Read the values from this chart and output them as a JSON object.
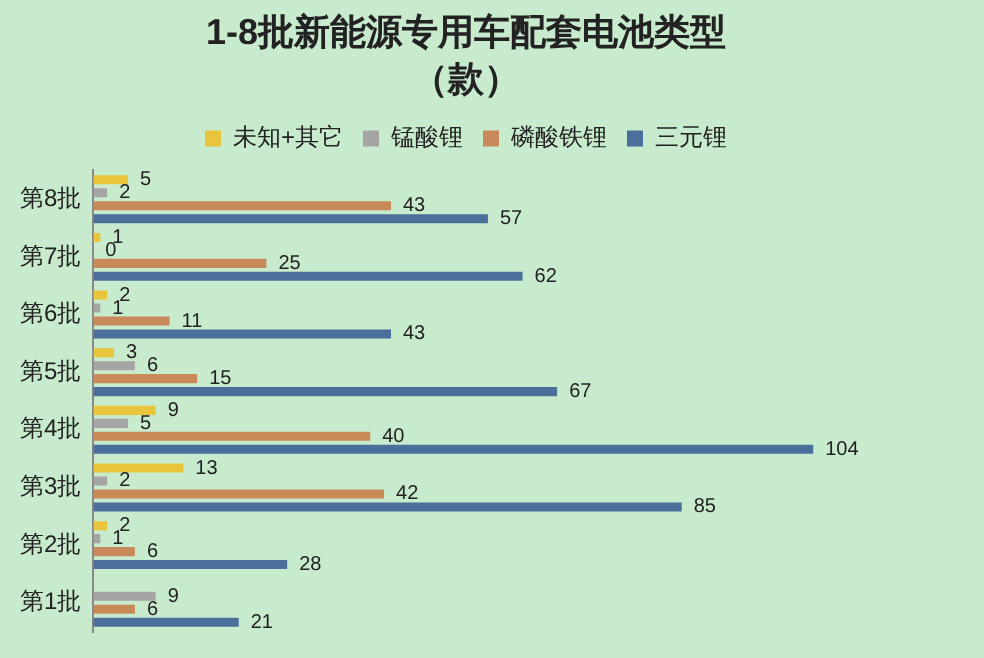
{
  "chart_data": {
    "type": "bar",
    "orientation": "horizontal",
    "title": "1-8批新能源专用车配套电池类型",
    "subtitle": "（款）",
    "categories": [
      "第8批",
      "第7批",
      "第6批",
      "第5批",
      "第4批",
      "第3批",
      "第2批",
      "第1批"
    ],
    "series": [
      {
        "name": "未知+其它",
        "color": "#e8c53a",
        "values": [
          5,
          1,
          2,
          3,
          9,
          13,
          2,
          null
        ]
      },
      {
        "name": "锰酸锂",
        "color": "#a5a5a5",
        "values": [
          2,
          0,
          1,
          6,
          5,
          2,
          1,
          9
        ]
      },
      {
        "name": "磷酸铁锂",
        "color": "#c98a5a",
        "values": [
          43,
          25,
          11,
          15,
          40,
          42,
          6,
          6
        ]
      },
      {
        "name": "三元锂",
        "color": "#4a6f9b",
        "values": [
          57,
          62,
          43,
          67,
          104,
          85,
          28,
          21
        ]
      }
    ],
    "data_labels": true,
    "legend": "top",
    "tick_labels": "y"
  }
}
